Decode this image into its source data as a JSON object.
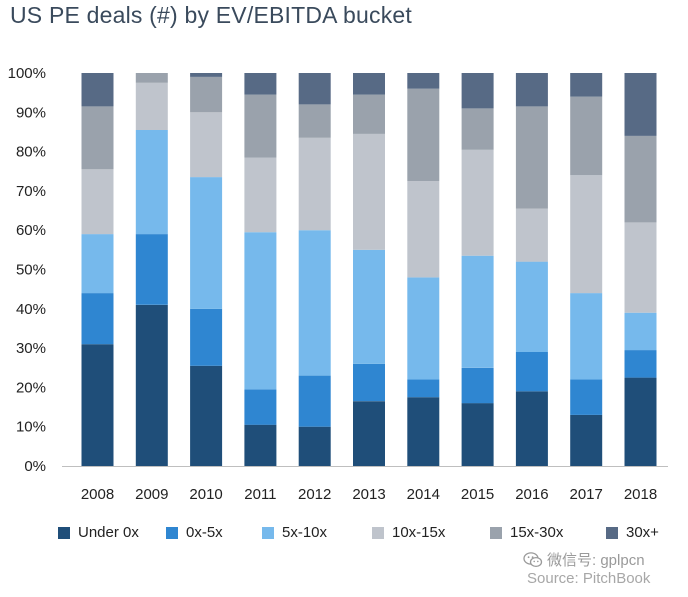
{
  "chart_data": {
    "type": "bar",
    "stacked": true,
    "title": "US PE deals (#) by EV/EBITDA bucket",
    "categories": [
      "2008",
      "2009",
      "2010",
      "2011",
      "2012",
      "2013",
      "2014",
      "2015",
      "2016",
      "2017",
      "2018"
    ],
    "ylim": [
      0,
      100
    ],
    "y_ticks": [
      "0%",
      "10%",
      "20%",
      "30%",
      "40%",
      "50%",
      "60%",
      "70%",
      "80%",
      "90%",
      "100%"
    ],
    "grid": false,
    "legend_position": "bottom",
    "series": [
      {
        "name": "Under 0x",
        "color": "#1f4e79",
        "values": [
          31,
          41,
          25.5,
          10.5,
          10,
          16.5,
          17.5,
          16,
          19,
          13,
          22.5
        ]
      },
      {
        "name": "0x-5x",
        "color": "#2f86d1",
        "values": [
          13,
          18,
          14.5,
          9,
          13,
          9.5,
          4.5,
          9,
          10,
          9,
          7
        ]
      },
      {
        "name": "5x-10x",
        "color": "#76b9ec",
        "values": [
          15,
          26.5,
          33.5,
          40,
          37,
          29,
          26,
          28.5,
          23,
          22,
          9.5
        ]
      },
      {
        "name": "10x-15x",
        "color": "#bfc4cc",
        "values": [
          16.5,
          12,
          16.5,
          19,
          23.5,
          29.5,
          24.5,
          27,
          13.5,
          30,
          23
        ]
      },
      {
        "name": "15x-30x",
        "color": "#9aa2ac",
        "values": [
          16,
          2.5,
          9,
          16,
          8.5,
          10,
          23.5,
          10.5,
          26,
          20,
          22
        ]
      },
      {
        "name": "30x+",
        "color": "#576a85",
        "values": [
          8.5,
          0,
          1,
          5.5,
          8,
          5.5,
          4,
          9,
          8.5,
          6,
          16
        ]
      }
    ]
  },
  "legend": {
    "items": [
      {
        "label": "Under 0x",
        "color": "#1f4e79"
      },
      {
        "label": "0x-5x",
        "color": "#2f86d1"
      },
      {
        "label": "5x-10x",
        "color": "#76b9ec"
      },
      {
        "label": "10x-15x",
        "color": "#bfc4cc"
      },
      {
        "label": "15x-30x",
        "color": "#9aa2ac"
      },
      {
        "label": "30x+",
        "color": "#576a85"
      }
    ]
  },
  "watermark": {
    "text": "微信号: gplpcn",
    "icon": "wechat-icon"
  },
  "source": "Source: PitchBook"
}
